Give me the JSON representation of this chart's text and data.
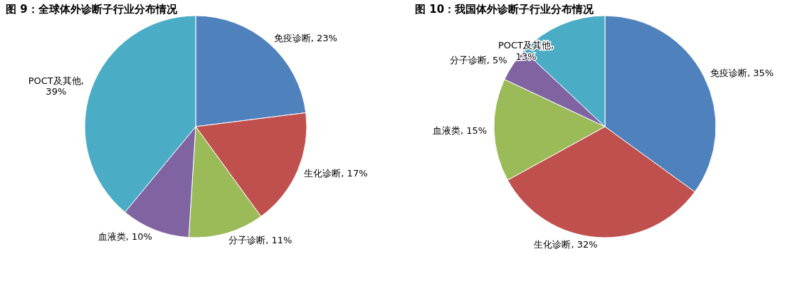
{
  "chart_data": [
    {
      "type": "pie",
      "title": "图 9：全球体外诊断子行业分布情况",
      "categories": [
        "免疫诊断",
        "生化诊断",
        "分子诊断",
        "血液类",
        "POCT及其他"
      ],
      "values": [
        23,
        17,
        11,
        10,
        39
      ],
      "value_labels": [
        ", 23%",
        ", 17%",
        ", 11%",
        ", 10%",
        ", 39%"
      ],
      "colors": [
        "#4f81bd",
        "#c0504d",
        "#9bbb59",
        "#8064a2",
        "#4bacc6"
      ],
      "legend": false
    },
    {
      "type": "pie",
      "title": "图 10：我国体外诊断子行业分布情况",
      "categories": [
        "免疫诊断",
        "生化诊断",
        "血液类",
        "分子诊断",
        "POCT及其他"
      ],
      "values": [
        35,
        32,
        15,
        5,
        13
      ],
      "value_labels": [
        ", 35%",
        ", 32%",
        ", 15%",
        ", 5%",
        ", 13%"
      ],
      "colors": [
        "#4f81bd",
        "#c0504d",
        "#9bbb59",
        "#8064a2",
        "#4bacc6"
      ],
      "legend": false
    }
  ]
}
